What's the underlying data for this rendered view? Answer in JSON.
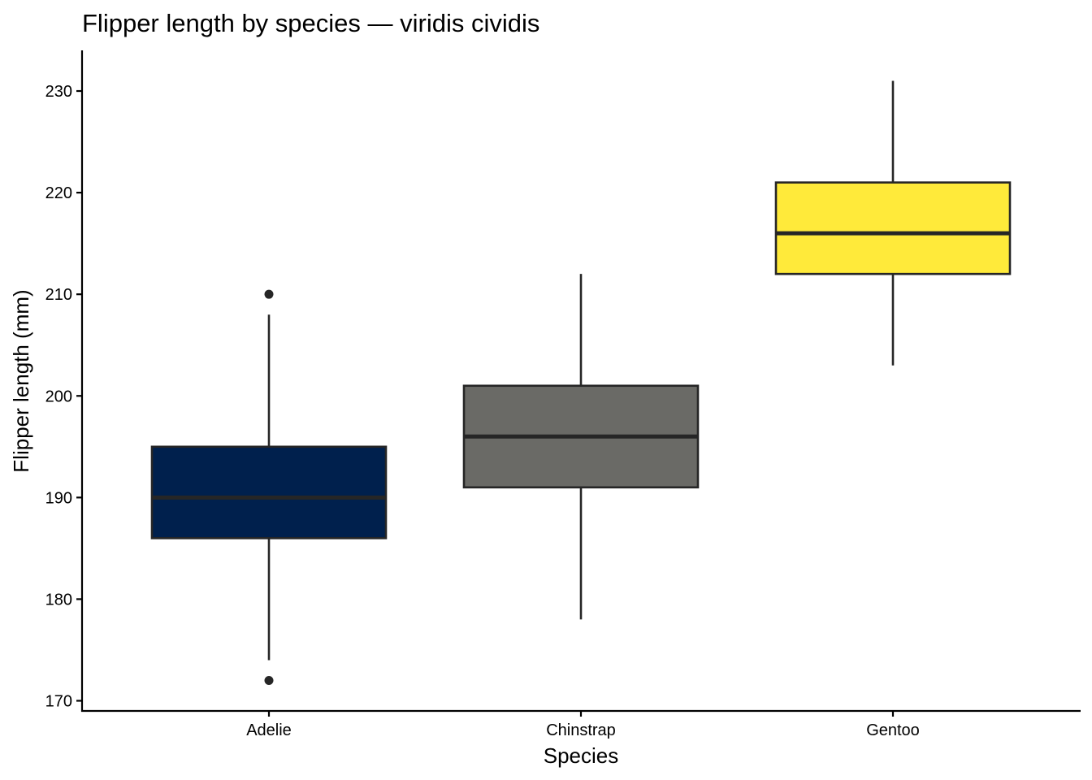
{
  "chart_data": {
    "type": "boxplot",
    "title": "Flipper length by species — viridis cividis",
    "xlabel": "Species",
    "ylabel": "Flipper length (mm)",
    "ylim": [
      169,
      234
    ],
    "yticks": [
      170,
      180,
      190,
      200,
      210,
      220,
      230
    ],
    "grid": false,
    "legend": "none",
    "categories": [
      "Adelie",
      "Chinstrap",
      "Gentoo"
    ],
    "boxes": [
      {
        "category": "Adelie",
        "whisker_low": 174,
        "q1": 186,
        "median": 190,
        "q3": 195,
        "whisker_high": 208,
        "outliers": [
          210,
          172
        ],
        "color": "#00204D"
      },
      {
        "category": "Chinstrap",
        "whisker_low": 178,
        "q1": 191,
        "median": 196,
        "q3": 201,
        "whisker_high": 212,
        "outliers": [],
        "color": "#6A6A66"
      },
      {
        "category": "Gentoo",
        "whisker_low": 203,
        "q1": 212,
        "median": 216,
        "q3": 221,
        "whisker_high": 231,
        "outliers": [],
        "color": "#FFEA3A"
      }
    ],
    "colors": {
      "line": "#262626",
      "axis": "#000000"
    }
  }
}
